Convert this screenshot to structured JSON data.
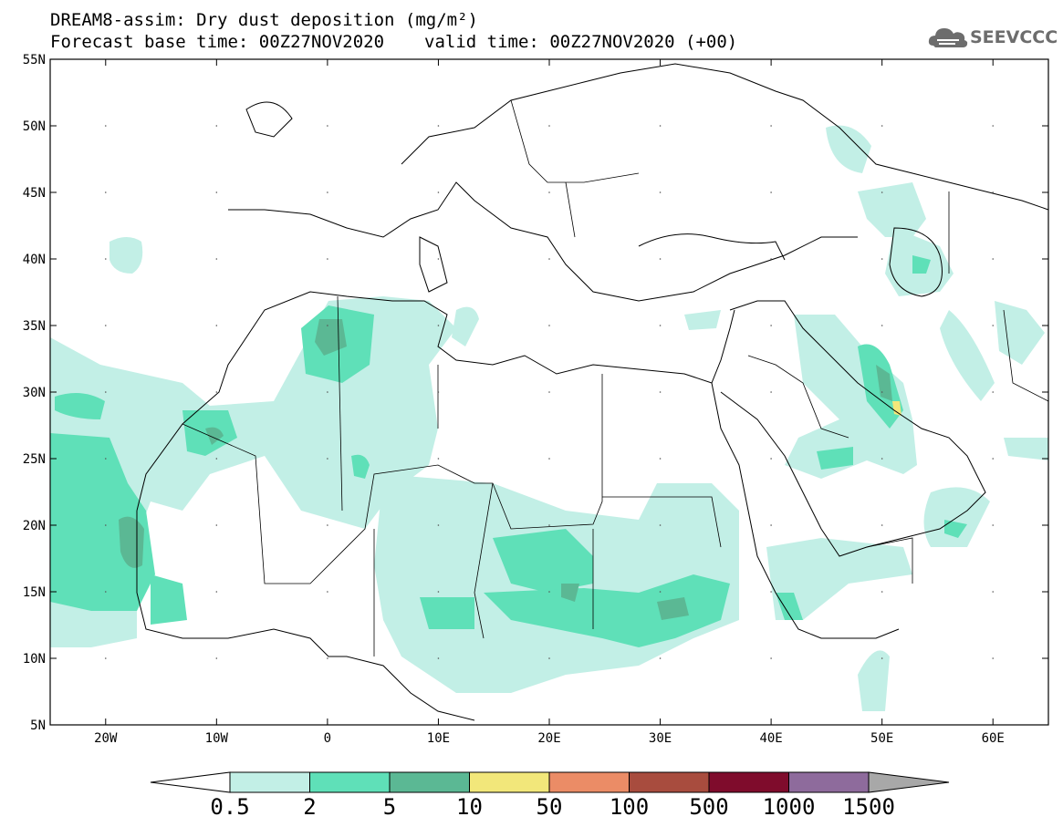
{
  "title": {
    "line1": "DREAM8-assim: Dry dust deposition (mg/m²)",
    "base_time": "Forecast base time: 00Z27NOV2020",
    "valid_time": "valid time: 00Z27NOV2020 (+00)"
  },
  "logo": {
    "text": "SEEVCCC",
    "icon": "cloud-icon"
  },
  "map": {
    "lon_range": [
      -25,
      65
    ],
    "lat_range": [
      5,
      55
    ],
    "x_ticks": [
      {
        "value": -20,
        "label": "20W"
      },
      {
        "value": -10,
        "label": "10W"
      },
      {
        "value": 0,
        "label": "0"
      },
      {
        "value": 10,
        "label": "10E"
      },
      {
        "value": 20,
        "label": "20E"
      },
      {
        "value": 30,
        "label": "30E"
      },
      {
        "value": 40,
        "label": "40E"
      },
      {
        "value": 50,
        "label": "50E"
      },
      {
        "value": 60,
        "label": "60E"
      }
    ],
    "y_ticks": [
      {
        "value": 55,
        "label": "55N"
      },
      {
        "value": 50,
        "label": "50N"
      },
      {
        "value": 45,
        "label": "45N"
      },
      {
        "value": 40,
        "label": "40N"
      },
      {
        "value": 35,
        "label": "35N"
      },
      {
        "value": 30,
        "label": "30N"
      },
      {
        "value": 25,
        "label": "25N"
      },
      {
        "value": 20,
        "label": "20N"
      },
      {
        "value": 15,
        "label": "15N"
      },
      {
        "value": 10,
        "label": "10N"
      },
      {
        "value": 5,
        "label": "5N"
      }
    ]
  },
  "colorbar": {
    "labels": [
      "0.5",
      "2",
      "5",
      "10",
      "50",
      "100",
      "500",
      "1000",
      "1500"
    ],
    "colors": [
      "#c2efe6",
      "#5fe0b8",
      "#5bb894",
      "#f2e77a",
      "#eb8c66",
      "#a84c3e",
      "#7f0c2c",
      "#8e6b9c"
    ],
    "under_color": "#ffffff",
    "over_color": "#a8a8a8"
  }
}
